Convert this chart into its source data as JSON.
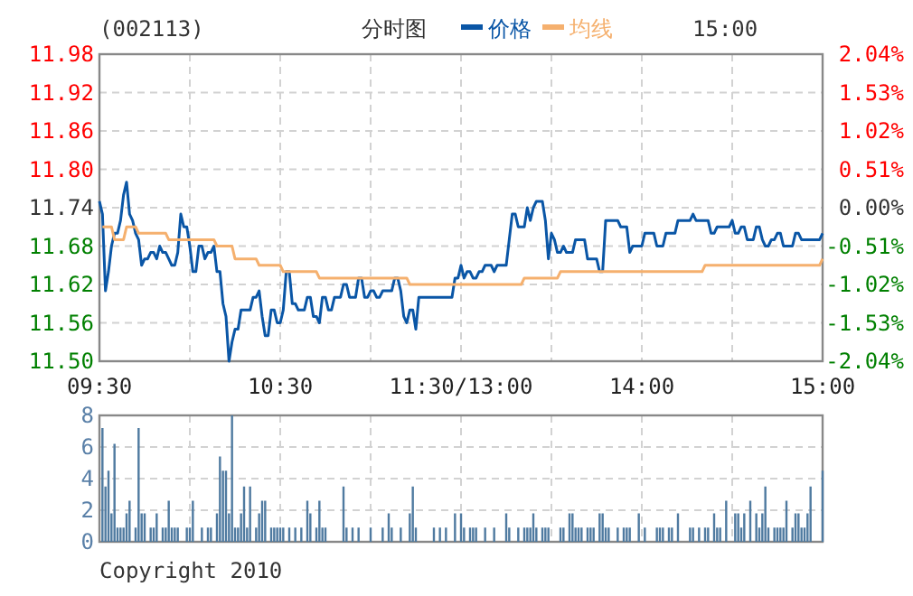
{
  "chart_data": [
    {
      "type": "line",
      "title": "分时图",
      "subtitle": "(002113)",
      "annotations": [
        "15:00"
      ],
      "legend": "top",
      "grid": true,
      "categories": [
        "09:30",
        null,
        null,
        null,
        null,
        null,
        null,
        null,
        null,
        null,
        null,
        null,
        null,
        null,
        null,
        null,
        null,
        null,
        null,
        null,
        null,
        null,
        null,
        null,
        null,
        null,
        null,
        null,
        null,
        null,
        null,
        null,
        null,
        null,
        null,
        null,
        null,
        null,
        null,
        null,
        null,
        null,
        null,
        null,
        null,
        null,
        null,
        null,
        null,
        null,
        null,
        null,
        null,
        null,
        null,
        null,
        null,
        null,
        null,
        null,
        "10:30",
        null,
        null,
        null,
        null,
        null,
        null,
        null,
        null,
        null,
        null,
        null,
        null,
        null,
        null,
        null,
        null,
        null,
        null,
        null,
        null,
        null,
        null,
        null,
        null,
        null,
        null,
        null,
        null,
        null,
        null,
        null,
        null,
        null,
        null,
        null,
        null,
        null,
        null,
        null,
        null,
        null,
        null,
        null,
        null,
        null,
        null,
        null,
        null,
        null,
        null,
        null,
        null,
        null,
        null,
        null,
        null,
        null,
        null,
        null,
        "11:30/13:00",
        null,
        null,
        null,
        null,
        null,
        null,
        null,
        null,
        null,
        null,
        null,
        null,
        null,
        null,
        null,
        null,
        null,
        null,
        null,
        null,
        null,
        null,
        null,
        null,
        null,
        null,
        null,
        null,
        null,
        null,
        null,
        null,
        null,
        null,
        null,
        null,
        null,
        null,
        null,
        null,
        null,
        null,
        null,
        null,
        null,
        null,
        null,
        null,
        null,
        null,
        null,
        null,
        null,
        null,
        null,
        null,
        null,
        null,
        null,
        "14:00",
        null,
        null,
        null,
        null,
        null,
        null,
        null,
        null,
        null,
        null,
        null,
        null,
        null,
        null,
        null,
        null,
        null,
        null,
        null,
        null,
        null,
        null,
        null,
        null,
        null,
        null,
        null,
        null,
        null,
        null,
        null,
        null,
        null,
        null,
        null,
        null,
        null,
        null,
        null,
        null,
        null,
        null,
        null,
        null,
        null,
        null,
        null,
        null,
        null,
        null,
        null,
        null,
        null,
        null,
        null,
        null,
        null,
        null,
        null,
        "15:00"
      ],
      "ylim": [
        11.5,
        11.98
      ],
      "yticks": [
        {
          "value": 11.5,
          "label": "11.50"
        },
        11.56,
        11.62,
        11.68,
        11.74,
        {
          "value": 11.8,
          "label": "11.80"
        },
        11.86,
        11.92,
        11.98
      ],
      "y2lim": [
        -2.04,
        2.04
      ],
      "y2ticks": [
        {
          "value": -2.04,
          "label": "-2.04%"
        },
        {
          "value": -1.53,
          "label": "-1.53%"
        },
        {
          "value": -1.02,
          "label": "-1.02%"
        },
        {
          "value": -0.51,
          "label": "-0.51%"
        },
        {
          "value": 0,
          "label": "0.00%"
        },
        {
          "value": 0.51,
          "label": "0.51%"
        },
        {
          "value": 1.02,
          "label": "1.02%"
        },
        {
          "value": 1.53,
          "label": "1.53%"
        },
        {
          "value": 2.04,
          "label": "2.04%"
        }
      ],
      "series": [
        {
          "name": "价格",
          "color": "#0a56a6",
          "values": [
            11.75,
            11.73,
            11.61,
            11.64,
            11.68,
            11.7,
            11.7,
            11.72,
            11.76,
            11.78,
            11.73,
            11.72,
            11.7,
            11.69,
            11.65,
            11.66,
            11.66,
            11.67,
            11.67,
            11.66,
            11.68,
            11.67,
            11.67,
            11.66,
            11.65,
            11.65,
            11.67,
            11.73,
            11.71,
            11.71,
            11.68,
            11.64,
            11.64,
            11.68,
            11.68,
            11.66,
            11.67,
            11.67,
            11.68,
            11.64,
            11.64,
            11.59,
            11.57,
            11.5,
            11.53,
            11.55,
            11.55,
            11.58,
            11.58,
            11.58,
            11.58,
            11.6,
            11.6,
            11.61,
            11.57,
            11.54,
            11.54,
            11.58,
            11.58,
            11.56,
            11.56,
            11.58,
            11.64,
            11.64,
            11.59,
            11.59,
            11.58,
            11.58,
            11.58,
            11.6,
            11.6,
            11.57,
            11.57,
            11.56,
            11.6,
            11.6,
            11.58,
            11.58,
            11.6,
            11.6,
            11.6,
            11.62,
            11.62,
            11.6,
            11.6,
            11.6,
            11.63,
            11.63,
            11.6,
            11.6,
            11.61,
            11.61,
            11.6,
            11.6,
            11.61,
            11.61,
            11.61,
            11.61,
            11.63,
            11.63,
            11.61,
            11.57,
            11.56,
            11.58,
            11.58,
            11.55,
            11.6,
            11.6,
            11.6,
            11.6,
            11.6,
            11.6,
            11.6,
            11.6,
            11.6,
            11.6,
            11.6,
            11.6,
            11.63,
            11.63,
            11.65,
            11.63,
            11.64,
            11.64,
            11.63,
            11.63,
            11.64,
            11.64,
            11.65,
            11.65,
            11.65,
            11.64,
            11.65,
            11.65,
            11.65,
            11.65,
            11.69,
            11.73,
            11.73,
            11.71,
            11.71,
            11.71,
            11.74,
            11.72,
            11.74,
            11.75,
            11.75,
            11.75,
            11.72,
            11.66,
            11.7,
            11.69,
            11.67,
            11.67,
            11.68,
            11.67,
            11.67,
            11.67,
            11.69,
            11.69,
            11.69,
            11.69,
            11.66,
            11.66,
            11.66,
            11.66,
            11.64,
            11.64,
            11.72,
            11.72,
            11.72,
            11.72,
            11.72,
            11.71,
            11.71,
            11.71,
            11.67,
            11.68,
            11.68,
            11.68,
            11.68,
            11.7,
            11.7,
            11.7,
            11.7,
            11.68,
            11.68,
            11.68,
            11.7,
            11.7,
            11.7,
            11.7,
            11.72,
            11.72,
            11.72,
            11.72,
            11.72,
            11.73,
            11.72,
            11.72,
            11.72,
            11.72,
            11.72,
            11.7,
            11.7,
            11.71,
            11.71,
            11.71,
            11.71,
            11.71,
            11.72,
            11.7,
            11.7,
            11.71,
            11.71,
            11.69,
            11.69,
            11.69,
            11.71,
            11.71,
            11.69,
            11.68,
            11.68,
            11.69,
            11.69,
            11.7,
            11.7,
            11.68,
            11.68,
            11.68,
            11.68,
            11.7,
            11.7,
            11.69,
            11.69,
            11.69,
            11.69,
            11.69,
            11.69,
            11.69,
            11.7
          ]
        },
        {
          "name": "均线",
          "color": "#f5b06e",
          "values": [
            null,
            11.71,
            11.71,
            11.71,
            11.71,
            11.69,
            11.69,
            11.69,
            11.69,
            11.71,
            11.71,
            11.71,
            11.71,
            11.7,
            11.7,
            11.7,
            11.7,
            11.7,
            11.7,
            11.7,
            11.7,
            11.7,
            11.7,
            11.69,
            11.69,
            11.69,
            11.69,
            11.69,
            11.69,
            11.69,
            11.69,
            11.69,
            11.69,
            11.69,
            11.69,
            11.69,
            11.69,
            11.69,
            11.69,
            11.68,
            11.68,
            11.68,
            11.68,
            11.68,
            11.68,
            11.66,
            11.66,
            11.66,
            11.66,
            11.66,
            11.66,
            11.66,
            11.66,
            11.65,
            11.65,
            11.65,
            11.65,
            11.65,
            11.65,
            11.65,
            11.65,
            11.64,
            11.64,
            11.64,
            11.64,
            11.64,
            11.64,
            11.64,
            11.64,
            11.64,
            11.64,
            11.64,
            11.64,
            11.63,
            11.63,
            11.63,
            11.63,
            11.63,
            11.63,
            11.63,
            11.63,
            11.63,
            11.63,
            11.63,
            11.63,
            11.63,
            11.63,
            11.63,
            11.63,
            11.63,
            11.63,
            11.63,
            11.63,
            11.63,
            11.63,
            11.63,
            11.63,
            11.63,
            11.63,
            11.63,
            11.63,
            11.63,
            11.63,
            11.62,
            11.62,
            11.62,
            11.62,
            11.62,
            11.62,
            11.62,
            11.62,
            11.62,
            11.62,
            11.62,
            11.62,
            11.62,
            11.62,
            11.62,
            11.62,
            11.62,
            11.62,
            11.62,
            11.62,
            11.62,
            11.62,
            11.62,
            11.62,
            11.62,
            11.62,
            11.62,
            11.62,
            11.62,
            11.62,
            11.62,
            11.62,
            11.62,
            11.62,
            11.62,
            11.62,
            11.62,
            11.62,
            11.63,
            11.63,
            11.63,
            11.63,
            11.63,
            11.63,
            11.63,
            11.63,
            11.63,
            11.63,
            11.63,
            11.63,
            11.64,
            11.64,
            11.64,
            11.64,
            11.64,
            11.64,
            11.64,
            11.64,
            11.64,
            11.64,
            11.64,
            11.64,
            11.64,
            11.64,
            11.64,
            11.64,
            11.64,
            11.64,
            11.64,
            11.64,
            11.64,
            11.64,
            11.64,
            11.64,
            11.64,
            11.64,
            11.64,
            11.64,
            11.64,
            11.64,
            11.64,
            11.64,
            11.64,
            11.64,
            11.64,
            11.64,
            11.64,
            11.64,
            11.64,
            11.64,
            11.64,
            11.64,
            11.64,
            11.64,
            11.64,
            11.64,
            11.64,
            11.64,
            11.65,
            11.65,
            11.65,
            11.65,
            11.65,
            11.65,
            11.65,
            11.65,
            11.65,
            11.65,
            11.65,
            11.65,
            11.65,
            11.65,
            11.65,
            11.65,
            11.65,
            11.65,
            11.65,
            11.65,
            11.65,
            11.65,
            11.65,
            11.65,
            11.65,
            11.65,
            11.65,
            11.65,
            11.65,
            11.65,
            11.65,
            11.65,
            11.65,
            11.65,
            11.65,
            11.65,
            11.65,
            11.65,
            11.65,
            11.66
          ]
        }
      ]
    },
    {
      "type": "bar",
      "annotations": [
        "Copyright 2010"
      ],
      "grid": true,
      "tick_labels": "y",
      "color": "#4f7aa0",
      "categories": [
        null,
        null,
        null,
        null,
        null,
        null,
        null,
        null,
        null,
        null,
        null,
        null,
        null,
        null,
        null,
        null,
        null,
        null,
        null,
        null,
        null,
        null,
        null,
        null,
        null,
        null,
        null,
        null,
        null,
        null,
        null,
        null,
        null,
        null,
        null,
        null,
        null,
        null,
        null,
        null,
        null,
        null,
        null,
        null,
        null,
        null,
        null,
        null,
        null,
        null,
        null,
        null,
        null,
        null,
        null,
        null,
        null,
        null,
        null,
        null,
        null,
        null,
        null,
        null,
        null,
        null,
        null,
        null,
        null,
        null,
        null,
        null,
        null,
        null,
        null,
        null,
        null,
        null,
        null,
        null,
        null,
        null,
        null,
        null,
        null,
        null,
        null,
        null,
        null,
        null,
        null,
        null,
        null,
        null,
        null,
        null,
        null,
        null,
        null,
        null,
        null,
        null,
        null,
        null,
        null,
        null,
        null,
        null,
        null,
        null,
        null,
        null,
        null,
        null,
        null,
        null,
        null,
        null,
        null,
        null,
        null,
        null,
        null,
        null,
        null,
        null,
        null,
        null,
        null,
        null,
        null,
        null,
        null,
        null,
        null,
        null,
        null,
        null,
        null,
        null,
        null,
        null,
        null,
        null,
        null,
        null,
        null,
        null,
        null,
        null,
        null,
        null,
        null,
        null,
        null,
        null,
        null,
        null,
        null,
        null,
        null,
        null,
        null,
        null,
        null,
        null,
        null,
        null,
        null,
        null,
        null,
        null,
        null,
        null,
        null,
        null,
        null,
        null,
        null,
        null,
        null,
        null,
        null,
        null,
        null,
        null,
        null,
        null,
        null,
        null,
        null,
        null,
        null,
        null,
        null,
        null,
        null,
        null,
        null,
        null,
        null,
        null,
        null,
        null,
        null,
        null,
        null,
        null,
        null,
        null,
        null,
        null,
        null,
        null,
        null,
        null,
        null,
        null,
        null,
        null,
        null,
        null,
        null,
        null,
        null,
        null,
        null,
        null,
        null,
        null,
        null,
        null,
        null,
        null,
        null,
        null,
        null,
        null,
        null,
        null,
        null
      ],
      "ylim": [
        0,
        8
      ],
      "yticks": [
        0,
        2,
        4,
        6,
        8
      ],
      "values": [
        0,
        7.2,
        3.5,
        4.5,
        1.8,
        6.2,
        0.9,
        0.9,
        0.9,
        1.8,
        2.6,
        0,
        0.9,
        7.2,
        1.8,
        1.8,
        0,
        0.9,
        0.9,
        1.8,
        0,
        0.9,
        0.9,
        2.6,
        0.9,
        0.9,
        0.9,
        0,
        0,
        0.9,
        0.9,
        2.6,
        0,
        0,
        0.9,
        0,
        0.9,
        0.9,
        0,
        1.8,
        5.4,
        4.5,
        4.5,
        1.8,
        8,
        0.9,
        0.9,
        1.8,
        3.5,
        0.9,
        3.5,
        0,
        0.9,
        1.8,
        2.6,
        2.6,
        0,
        0.9,
        0.9,
        0.9,
        0.9,
        0.9,
        0,
        0.9,
        0,
        0.9,
        0,
        0.9,
        0,
        2.6,
        1.8,
        0,
        0.9,
        2.6,
        0.9,
        0.9,
        0,
        0,
        0,
        0,
        0,
        3.5,
        0.9,
        0,
        0.9,
        0,
        0.9,
        0,
        0,
        0,
        0.9,
        0,
        0,
        0,
        0.9,
        0,
        1.8,
        0.9,
        0,
        0,
        0.9,
        0,
        0,
        1.8,
        3.5,
        0.9,
        0,
        0,
        0,
        0,
        0,
        0.9,
        0,
        0.9,
        0,
        0.9,
        0,
        0,
        1.8,
        0,
        1.8,
        0.9,
        0,
        0.9,
        0.9,
        0.9,
        0,
        0,
        0.9,
        0,
        0,
        0.9,
        0,
        0,
        0,
        1.8,
        0.9,
        0,
        0,
        0.9,
        0,
        0.9,
        0.9,
        0.9,
        1.8,
        0.9,
        0,
        0.9,
        0.9,
        0.9,
        0,
        0,
        0,
        0.9,
        0.9,
        0,
        1.8,
        1.8,
        0.9,
        0.9,
        0.9,
        0,
        0.9,
        0.9,
        0.9,
        0,
        1.8,
        1.8,
        0.9,
        0.9,
        0,
        0,
        0.9,
        0,
        0.9,
        0.9,
        0.9,
        0,
        0,
        1.8,
        0,
        0.9,
        0,
        0,
        0,
        0.9,
        0.9,
        0.9,
        0,
        0.9,
        0.9,
        0,
        1.8,
        0,
        0,
        0,
        0.9,
        0.9,
        0,
        0.9,
        0,
        0.9,
        0.9,
        0,
        1.8,
        0.9,
        0.9,
        0,
        2.6,
        0,
        0,
        1.8,
        1.8,
        0.9,
        1.8,
        0,
        2.6,
        0,
        1.8,
        0.9,
        1.8,
        3.5,
        0.9,
        0,
        0.9,
        0.9,
        0.9,
        0.9,
        2.6,
        0,
        0.9,
        1.8,
        1.8,
        0.9,
        0.9,
        1.8,
        3.5,
        0,
        0,
        0,
        4.5
      ]
    }
  ]
}
